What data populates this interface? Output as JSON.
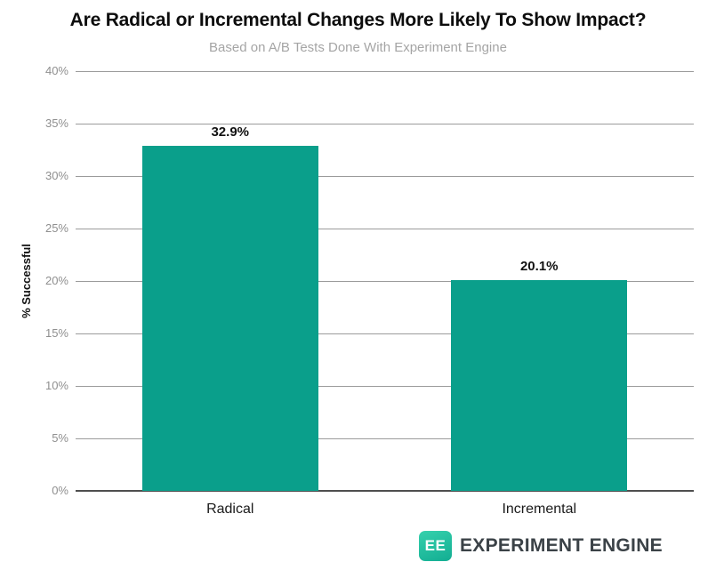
{
  "chart_data": {
    "type": "bar",
    "title": "Are Radical or Incremental Changes More Likely To Show Impact?",
    "subtitle": "Based on A/B Tests Done With Experiment Engine",
    "categories": [
      "Radical",
      "Incremental"
    ],
    "values": [
      32.9,
      20.1
    ],
    "value_labels": [
      "32.9%",
      "20.1%"
    ],
    "xlabel": "",
    "ylabel": "% Successful",
    "ylim": [
      0,
      40
    ],
    "ytick_step": 5,
    "ytick_labels": [
      "0%",
      "5%",
      "10%",
      "15%",
      "20%",
      "25%",
      "30%",
      "35%",
      "40%"
    ],
    "grid": true,
    "legend": "none",
    "colors": {
      "bar": "#0a9f8b",
      "gridline": "#9b9b9b",
      "baseline": "#4f4f4f",
      "tick_label": "#8f8f8f",
      "title": "#0d0d0d",
      "subtitle": "#a5a5a5"
    }
  },
  "footer": {
    "logo_badge": "EE",
    "logo_text": "EXPERIMENT ENGINE",
    "logo_colors": {
      "badge_gradient_start": "#36d1ad",
      "badge_gradient_end": "#12ad92",
      "badge_text": "#ffffff",
      "text": "#3b4247"
    }
  }
}
